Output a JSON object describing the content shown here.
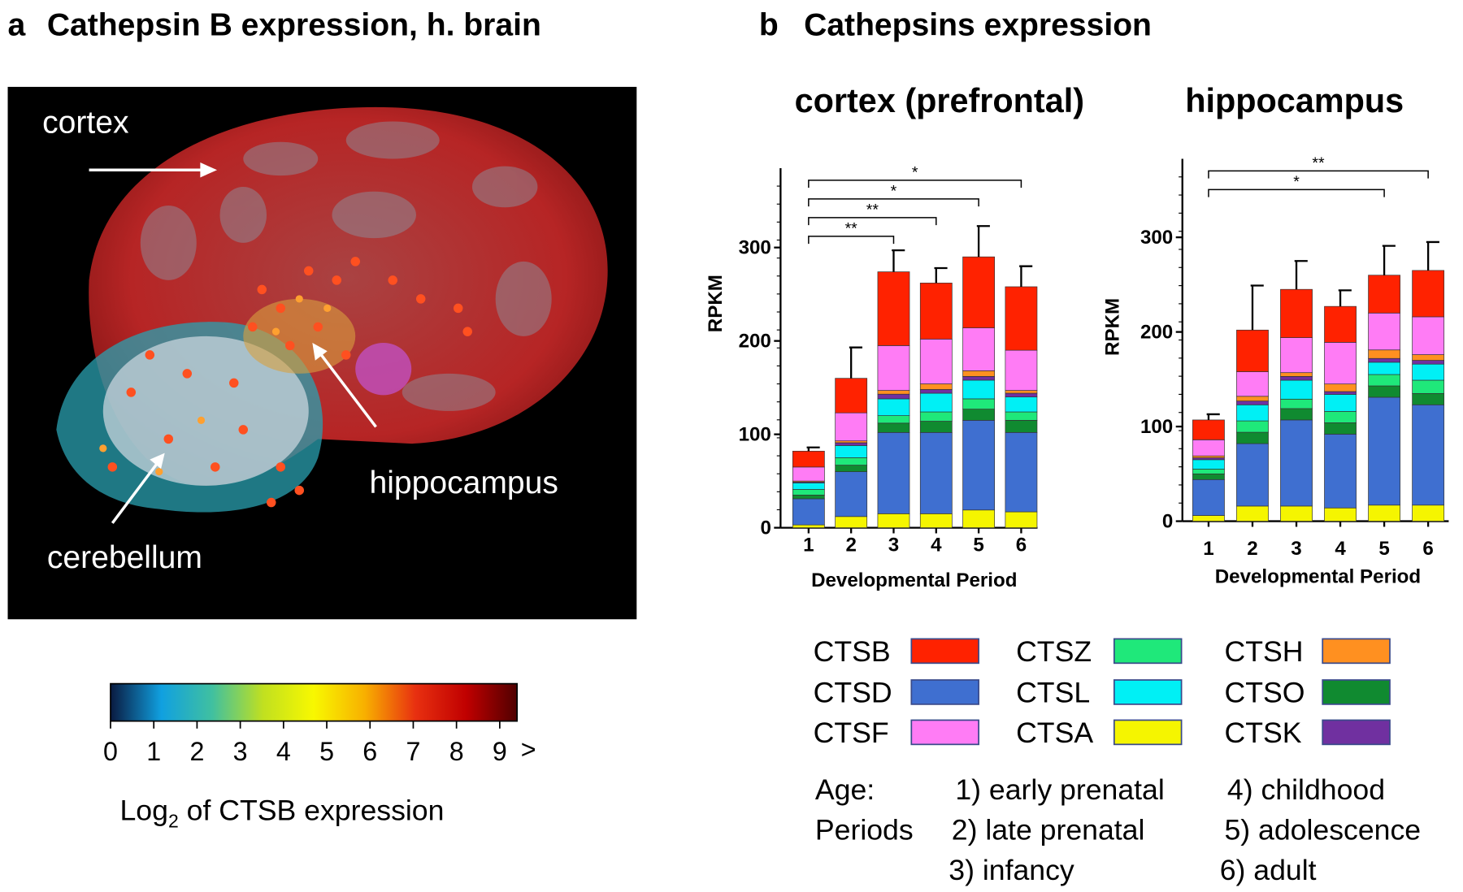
{
  "panel_a": {
    "letter": "a",
    "title": "Cathepsin B expression, h. brain",
    "labels": [
      "cortex",
      "hippocampus",
      "cerebellum"
    ],
    "colorbar": {
      "ticks": [
        0,
        1,
        2,
        3,
        4,
        5,
        6,
        7,
        8,
        9
      ],
      "xlim": [
        0,
        9.4
      ],
      "overflow_label": ">",
      "colors": [
        "#0a1a40",
        "#10a0e0",
        "#40c0a0",
        "#c0e020",
        "#f8f800",
        "#f8b000",
        "#e83010",
        "#c00000",
        "#500000"
      ],
      "label_parts": [
        "Log",
        "2",
        " of CTSB expression"
      ]
    }
  },
  "panel_b": {
    "letter": "b",
    "title": "Cathepsins expression"
  },
  "chart_data": [
    {
      "type": "stacked-bar",
      "title": "cortex (prefrontal)",
      "y_label": "RPKM",
      "x_label": "Developmental Period",
      "categories": [
        "1",
        "2",
        "3",
        "4",
        "5",
        "6"
      ],
      "ylim": [
        0,
        385
      ],
      "yticks": [
        0,
        100,
        200,
        300
      ],
      "stack_order": [
        "CTSA",
        "CTSD",
        "CTSO",
        "CTSZ",
        "CTSL",
        "CTSK",
        "CTSH",
        "CTSF",
        "CTSB"
      ],
      "series": [
        {
          "name": "CTSB",
          "color": "#ff2200",
          "values": [
            17,
            37,
            79,
            60,
            76,
            68
          ]
        },
        {
          "name": "CTSD",
          "color": "#3f6fd0",
          "values": [
            28,
            48,
            87,
            87,
            96,
            85
          ]
        },
        {
          "name": "CTSF",
          "color": "#ff7cf5",
          "values": [
            15,
            30,
            48,
            48,
            46,
            43
          ]
        },
        {
          "name": "CTSZ",
          "color": "#1fe87a",
          "values": [
            6,
            8,
            8,
            10,
            11,
            9
          ]
        },
        {
          "name": "CTSL",
          "color": "#00f0f5",
          "values": [
            7,
            13,
            18,
            20,
            20,
            16
          ]
        },
        {
          "name": "CTSA",
          "color": "#f5f500",
          "values": [
            3,
            12,
            15,
            15,
            19,
            17
          ]
        },
        {
          "name": "CTSH",
          "color": "#ff9020",
          "values": [
            1,
            2,
            4,
            6,
            6,
            3
          ]
        },
        {
          "name": "CTSO",
          "color": "#108a30",
          "values": [
            4,
            7,
            10,
            12,
            12,
            13
          ]
        },
        {
          "name": "CTSK",
          "color": "#7030a0",
          "values": [
            1,
            3,
            5,
            4,
            4,
            4
          ]
        }
      ],
      "errors": [
        4,
        33,
        23,
        16,
        33,
        22
      ],
      "annotations": [
        {
          "text": "*",
          "from": "1",
          "to": "6"
        },
        {
          "text": "*",
          "from": "1",
          "to": "5"
        },
        {
          "text": "**",
          "from": "1",
          "to": "4"
        },
        {
          "text": "**",
          "from": "1",
          "to": "3"
        }
      ]
    },
    {
      "type": "stacked-bar",
      "title": "hippocampus",
      "y_label": "RPKM",
      "x_label": "Developmental Period",
      "categories": [
        "1",
        "2",
        "3",
        "4",
        "5",
        "6"
      ],
      "ylim": [
        0,
        383
      ],
      "yticks": [
        0,
        100,
        200,
        300
      ],
      "stack_order": [
        "CTSA",
        "CTSD",
        "CTSO",
        "CTSZ",
        "CTSL",
        "CTSK",
        "CTSH",
        "CTSF",
        "CTSB"
      ],
      "series": [
        {
          "name": "CTSB",
          "color": "#ff2200",
          "values": [
            21,
            44,
            51,
            38,
            40,
            49
          ]
        },
        {
          "name": "CTSD",
          "color": "#3f6fd0",
          "values": [
            38,
            66,
            91,
            78,
            114,
            106
          ]
        },
        {
          "name": "CTSF",
          "color": "#ff7cf5",
          "values": [
            17,
            26,
            37,
            44,
            39,
            40
          ]
        },
        {
          "name": "CTSZ",
          "color": "#1fe87a",
          "values": [
            5,
            12,
            10,
            12,
            12,
            14
          ]
        },
        {
          "name": "CTSL",
          "color": "#00f0f5",
          "values": [
            10,
            17,
            20,
            18,
            13,
            17
          ]
        },
        {
          "name": "CTSA",
          "color": "#f5f500",
          "values": [
            6,
            16,
            16,
            14,
            17,
            17
          ]
        },
        {
          "name": "CTSH",
          "color": "#ff9020",
          "values": [
            2,
            5,
            4,
            8,
            9,
            6
          ]
        },
        {
          "name": "CTSO",
          "color": "#108a30",
          "values": [
            6,
            12,
            12,
            12,
            12,
            12
          ]
        },
        {
          "name": "CTSK",
          "color": "#7030a0",
          "values": [
            2,
            4,
            4,
            3,
            4,
            4
          ]
        }
      ],
      "errors": [
        6,
        47,
        30,
        17,
        31,
        30
      ],
      "annotations": [
        {
          "text": "**",
          "from": "1",
          "to": "6"
        },
        {
          "text": "*",
          "from": "1",
          "to": "5"
        }
      ]
    }
  ],
  "legend_note": {
    "heading": [
      "Age:",
      "Periods"
    ],
    "items": [
      "1) early prenatal",
      "2) late prenatal",
      "3) infancy",
      "4) childhood",
      "5) adolescence",
      "6) adult"
    ]
  }
}
